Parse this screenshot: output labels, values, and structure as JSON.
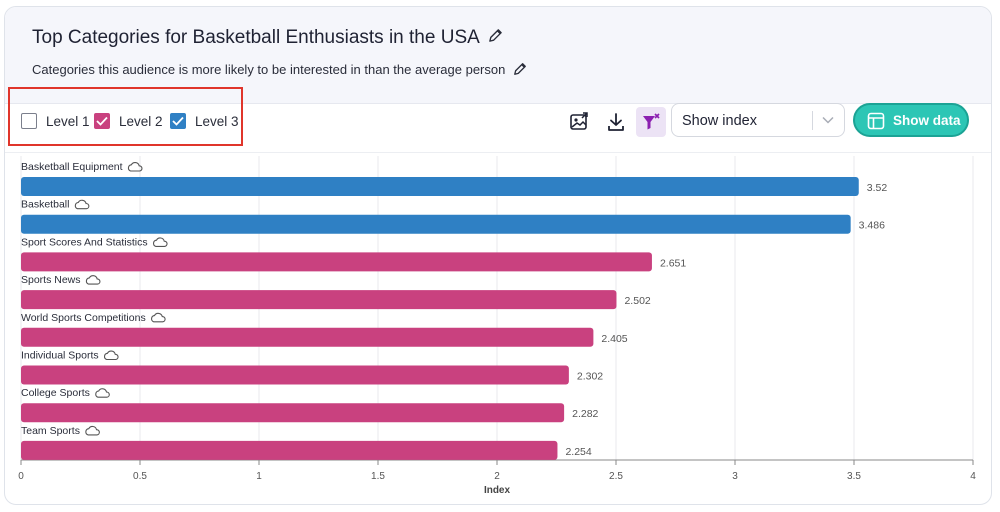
{
  "header": {
    "title": "Top Categories for Basketball Enthusiasts in the USA",
    "subtitle": "Categories this audience is more likely to be interested in than the average person"
  },
  "levels": [
    {
      "label": "Level 1",
      "checked": false,
      "color": "#ffffff"
    },
    {
      "label": "Level 2",
      "checked": true,
      "color": "#c9417f"
    },
    {
      "label": "Level 3",
      "checked": true,
      "color": "#2f80c4"
    }
  ],
  "toolbar": {
    "select_value": "Show index",
    "show_data_label": "Show data",
    "icons": [
      "image-export-icon",
      "download-icon",
      "funnel-clear-icon"
    ]
  },
  "colors": {
    "level2": "#c9417f",
    "level3": "#2f80c4",
    "accent": "#2cc6b5",
    "highlight": "#e0352b"
  },
  "chart_data": {
    "type": "bar",
    "orientation": "horizontal",
    "categories": [
      "Basketball Equipment",
      "Basketball",
      "Sport Scores And Statistics",
      "Sports News",
      "World Sports Competitions",
      "Individual Sports",
      "College Sports",
      "Team Sports"
    ],
    "values": [
      3.52,
      3.486,
      2.651,
      2.502,
      2.405,
      2.302,
      2.282,
      2.254
    ],
    "value_labels": [
      "3.52",
      "3.486",
      "2.651",
      "2.502",
      "2.405",
      "2.302",
      "2.282",
      "2.254"
    ],
    "levels": [
      3,
      3,
      2,
      2,
      2,
      2,
      2,
      2
    ],
    "xlabel": "Index",
    "xlim": [
      0,
      4
    ],
    "xticks": [
      "0",
      "0.5",
      "1",
      "1.5",
      "2",
      "2.5",
      "3",
      "3.5",
      "4"
    ],
    "grid": true
  }
}
